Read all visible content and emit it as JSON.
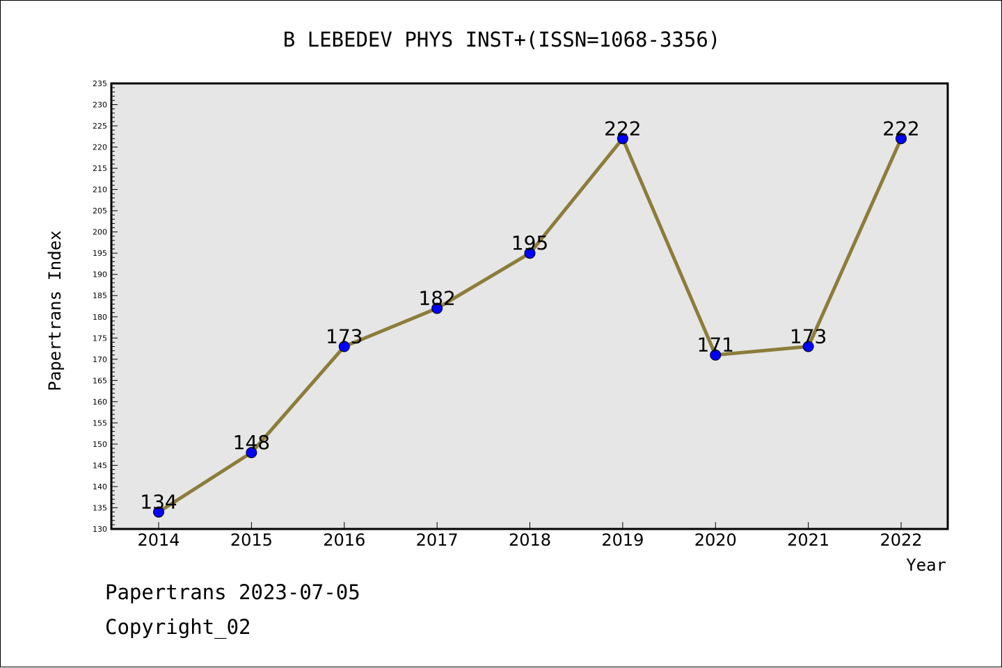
{
  "chart_data": {
    "type": "line",
    "title": "B LEBEDEV PHYS INST+(ISSN=1068-3356)",
    "xlabel": "Year",
    "ylabel": "Papertrans Index",
    "categories": [
      "2014",
      "2015",
      "2016",
      "2017",
      "2018",
      "2019",
      "2020",
      "2021",
      "2022"
    ],
    "values": [
      134,
      148,
      173,
      182,
      195,
      222,
      171,
      173,
      222
    ],
    "ylim": [
      130,
      235
    ],
    "ytick_step": 5,
    "grid": false,
    "data_labels": true,
    "colors": {
      "plot_background": "#e6e6e6",
      "line": "#8b7d3a",
      "marker": "#0000ff"
    }
  },
  "footer": {
    "line1": "Papertrans 2023-07-05",
    "line2": "Copyright_02"
  }
}
